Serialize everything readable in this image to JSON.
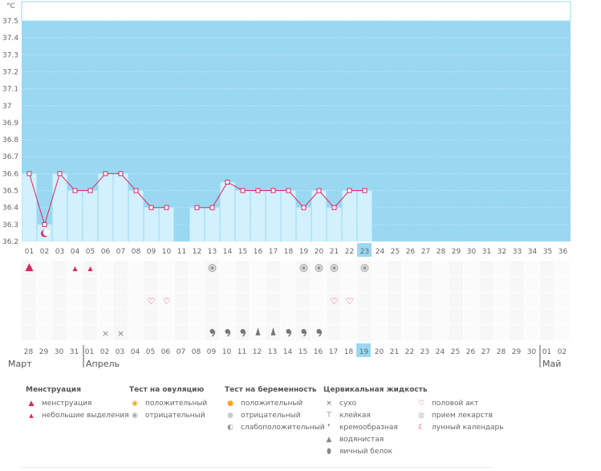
{
  "unit": "°C",
  "colors": {
    "plot_bg": "#9ad8f2",
    "bar": "#d2f0fd",
    "line": "#e0245e",
    "highlight": "#9ad8f2",
    "weekend": "#e0245e",
    "text": "#666666"
  },
  "chart_data": {
    "type": "line",
    "title": "",
    "ylabel": "°C",
    "ylim": [
      36.2,
      37.5
    ],
    "yticks": [
      "36.2",
      "36.3",
      "36.4",
      "36.5",
      "36.6",
      "36.7",
      "36.8",
      "36.9",
      "37",
      "37.1",
      "37.2",
      "37.3",
      "37.4",
      "37.5"
    ],
    "cycle_days": [
      "01",
      "02",
      "03",
      "04",
      "05",
      "06",
      "07",
      "08",
      "09",
      "10",
      "11",
      "12",
      "13",
      "14",
      "15",
      "16",
      "17",
      "18",
      "19",
      "20",
      "21",
      "22",
      "23",
      "24",
      "25",
      "26",
      "27",
      "28",
      "29",
      "30",
      "31",
      "32",
      "33",
      "34",
      "35",
      "36"
    ],
    "highlight_cycle_day": "23",
    "temperatures": [
      36.6,
      36.3,
      36.6,
      36.5,
      36.5,
      36.6,
      36.6,
      36.5,
      36.4,
      36.4,
      null,
      36.4,
      36.4,
      36.55,
      36.5,
      36.5,
      36.5,
      36.5,
      36.4,
      36.5,
      36.4,
      36.5,
      36.5,
      null,
      null,
      null,
      null,
      null,
      null,
      null,
      null,
      null,
      null,
      null,
      null,
      null
    ],
    "calendar_dates": [
      "28",
      "29",
      "30",
      "31",
      "01",
      "02",
      "03",
      "04",
      "05",
      "06",
      "07",
      "08",
      "09",
      "10",
      "11",
      "12",
      "13",
      "14",
      "15",
      "16",
      "17",
      "18",
      "19",
      "20",
      "21",
      "22",
      "23",
      "24",
      "25",
      "26",
      "27",
      "28",
      "29",
      "30",
      "01",
      "02"
    ],
    "red_dates_idx": [
      1,
      2,
      8,
      9,
      15,
      16,
      22,
      23,
      29,
      30
    ],
    "highlight_date_idx": 22,
    "months": [
      "Март",
      "Апрель",
      "Май"
    ]
  },
  "markers": {
    "menstruation": {
      "0": "heavy",
      "3": "light",
      "4": "light"
    },
    "ovulation_test": {
      "12": "neg",
      "18": "neg",
      "19": "neg",
      "20": "neg",
      "22": "neg"
    },
    "sex": [
      "8",
      "9",
      "20",
      "21"
    ],
    "dryness": [
      "5",
      "6"
    ],
    "fluid_creamy": [
      "12",
      "13",
      "14",
      "17",
      "18",
      "19"
    ],
    "fluid_watery": [
      "15",
      "16"
    ],
    "lunar": [
      "1"
    ]
  },
  "legend": {
    "menstruation": {
      "title": "Менструация",
      "items": [
        "менструация",
        "небольшие выделения"
      ]
    },
    "ovulation": {
      "title": "Тест на овуляцию",
      "items": [
        "положительный",
        "отрицательный"
      ]
    },
    "pregnancy": {
      "title": "Тест на беременность",
      "items": [
        "положительный",
        "отрицательный",
        "слабоположительный"
      ]
    },
    "fluid": {
      "title": "Цервикальная жидкость",
      "items": [
        "сухо",
        "клейкая",
        "кремообразная",
        "водянистая",
        "яичный белок"
      ]
    },
    "other": {
      "items": [
        "половой акт",
        "прием лекарств",
        "лунный календарь"
      ]
    }
  }
}
